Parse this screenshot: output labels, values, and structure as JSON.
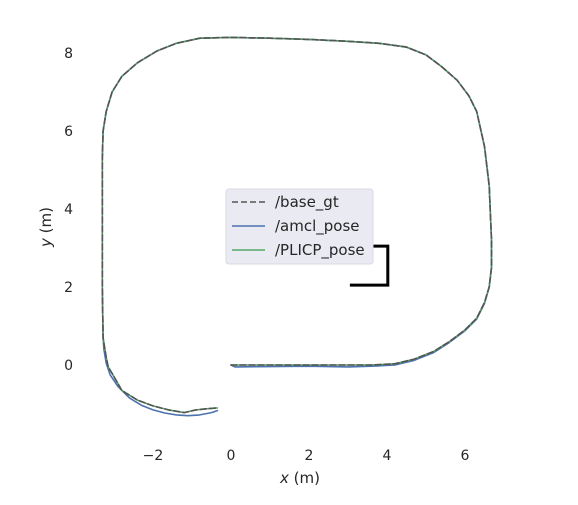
{
  "chart_data": {
    "type": "line",
    "xlabel": {
      "var": "x",
      "unit": " (m)"
    },
    "ylabel": {
      "var": "y",
      "unit": " (m)"
    },
    "xlim": [
      -3.45,
      7.0
    ],
    "ylim": [
      -1.75,
      8.6
    ],
    "xticks": [
      -2,
      0,
      2,
      4,
      6
    ],
    "yticks": [
      0,
      2,
      4,
      6,
      8
    ],
    "xtick_labels": [
      "−2",
      "0",
      "2",
      "4",
      "6"
    ],
    "ytick_labels": [
      "0",
      "2",
      "4",
      "6",
      "8"
    ],
    "grid": false,
    "legend_position": "center",
    "legend": [
      "/base_gt",
      "/amcl_pose",
      "/PLICP_pose"
    ],
    "colors": {
      "base_gt": "#555555",
      "amcl_pose": "#4c72b0",
      "PLICP_pose": "#55a868",
      "obstacle": "#000000",
      "legend_bg": "#eaeaf2"
    },
    "series": [
      {
        "name": "/base_gt",
        "style": "dashed",
        "x": [
          0.0,
          1.0,
          2.0,
          3.0,
          3.6,
          4.2,
          4.7,
          5.2,
          5.6,
          6.0,
          6.3,
          6.5,
          6.62,
          6.68,
          6.68,
          6.62,
          6.5,
          6.3,
          6.1,
          5.8,
          5.4,
          5.0,
          4.5,
          3.8,
          3.0,
          2.0,
          1.0,
          0.0,
          -0.8,
          -1.4,
          -1.9,
          -2.4,
          -2.8,
          -3.05,
          -3.2,
          -3.28,
          -3.3,
          -3.3,
          -3.3,
          -3.28,
          -3.25,
          -3.2,
          -3.15,
          -3.0,
          -2.8,
          -2.4,
          -2.0,
          -1.6,
          -1.2,
          -0.9,
          -0.6,
          -0.35
        ],
        "y": [
          0.0,
          0.0,
          0.0,
          0.0,
          0.0,
          0.03,
          0.15,
          0.35,
          0.6,
          0.9,
          1.2,
          1.6,
          2.0,
          2.5,
          3.2,
          4.6,
          5.6,
          6.5,
          6.9,
          7.3,
          7.65,
          7.95,
          8.15,
          8.25,
          8.3,
          8.35,
          8.38,
          8.4,
          8.38,
          8.25,
          8.05,
          7.75,
          7.4,
          7.0,
          6.5,
          6.0,
          5.3,
          4.0,
          2.0,
          0.7,
          0.5,
          0.2,
          -0.05,
          -0.3,
          -0.65,
          -0.9,
          -1.05,
          -1.15,
          -1.22,
          -1.15,
          -1.12,
          -1.1
        ]
      },
      {
        "name": "/amcl_pose",
        "style": "solid",
        "x": [
          0.0,
          0.1,
          1.0,
          2.0,
          3.0,
          3.6,
          4.2,
          4.7,
          5.2,
          5.6,
          6.0,
          6.3,
          6.5,
          6.62,
          6.68,
          6.68,
          6.62,
          6.5,
          6.3,
          6.1,
          5.8,
          5.4,
          5.0,
          4.5,
          3.8,
          3.0,
          2.0,
          1.0,
          0.0,
          -0.8,
          -1.4,
          -1.9,
          -2.4,
          -2.8,
          -3.05,
          -3.2,
          -3.28,
          -3.3,
          -3.3,
          -3.3,
          -3.28,
          -3.26,
          -3.2,
          -3.1,
          -2.9,
          -2.6,
          -2.3,
          -2.0,
          -1.7,
          -1.4,
          -1.1,
          -0.8,
          -0.5,
          -0.35
        ],
        "y": [
          0.0,
          -0.05,
          -0.04,
          -0.03,
          -0.05,
          -0.03,
          0.0,
          0.12,
          0.32,
          0.58,
          0.88,
          1.18,
          1.58,
          2.0,
          2.5,
          3.2,
          4.6,
          5.6,
          6.5,
          6.9,
          7.3,
          7.65,
          7.95,
          8.15,
          8.25,
          8.3,
          8.35,
          8.38,
          8.4,
          8.38,
          8.25,
          8.05,
          7.75,
          7.4,
          7.0,
          6.5,
          6.0,
          5.3,
          4.0,
          2.0,
          0.7,
          0.4,
          0.05,
          -0.25,
          -0.55,
          -0.85,
          -1.03,
          -1.15,
          -1.23,
          -1.28,
          -1.3,
          -1.28,
          -1.22,
          -1.17
        ]
      },
      {
        "name": "/PLICP_pose",
        "style": "solid",
        "x": [
          0.0,
          1.0,
          2.0,
          3.0,
          3.6,
          4.2,
          4.7,
          5.2,
          5.6,
          6.0,
          6.3,
          6.5,
          6.62,
          6.68,
          6.68,
          6.62,
          6.5,
          6.3,
          6.1,
          5.8,
          5.4,
          5.0,
          4.5,
          3.8,
          3.0,
          2.0,
          1.0,
          0.0,
          -0.8,
          -1.4,
          -1.9,
          -2.4,
          -2.8,
          -3.05,
          -3.2,
          -3.28,
          -3.3,
          -3.3,
          -3.3,
          -3.28,
          -3.25,
          -3.2,
          -3.15,
          -3.0,
          -2.8,
          -2.4,
          -2.0,
          -1.6,
          -1.2,
          -0.9,
          -0.6,
          -0.35
        ],
        "y": [
          0.0,
          0.0,
          0.0,
          0.0,
          0.0,
          0.03,
          0.15,
          0.35,
          0.6,
          0.9,
          1.2,
          1.6,
          2.0,
          2.5,
          3.2,
          4.6,
          5.6,
          6.5,
          6.9,
          7.3,
          7.65,
          7.95,
          8.15,
          8.25,
          8.3,
          8.35,
          8.38,
          8.4,
          8.38,
          8.25,
          8.05,
          7.75,
          7.4,
          7.0,
          6.5,
          6.0,
          5.3,
          4.0,
          2.0,
          0.7,
          0.5,
          0.2,
          -0.05,
          -0.3,
          -0.65,
          -0.9,
          -1.05,
          -1.15,
          -1.22,
          -1.15,
          -1.12,
          -1.1
        ]
      }
    ],
    "obstacle": {
      "x": [
        3.05,
        4.02,
        4.02,
        3.05
      ],
      "y": [
        3.05,
        3.05,
        2.05,
        2.05
      ]
    }
  }
}
